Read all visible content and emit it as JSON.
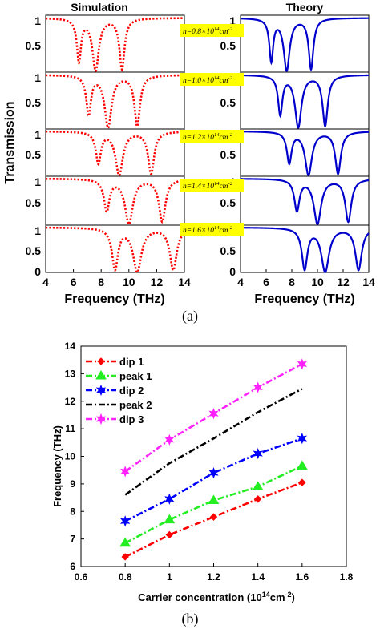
{
  "caption_a": "(a)",
  "caption_b": "(b)",
  "colors": {
    "simulation": "#ff0000",
    "theory": "#0000cc",
    "label_bg": "#ffff00",
    "dip1": "#ff0000",
    "peak1": "#22ee22",
    "dip2": "#0000ff",
    "peak2": "#000000",
    "dip3": "#ff22ff"
  },
  "chart_data": [
    {
      "type": "line",
      "panel": "a",
      "column_titles": [
        "Simulation",
        "Theory"
      ],
      "ylabel": "Transmission",
      "xlabel": "Frequency (THz)",
      "xlim": [
        4,
        14
      ],
      "xticks": [
        "4",
        "6",
        "8",
        "10",
        "12",
        "14"
      ],
      "yticks_top": [
        "0",
        "0.5",
        "1"
      ],
      "yticks_other": [
        "0.5",
        "1"
      ],
      "subplots": [
        {
          "label": "n=0.8×10¹⁴cm⁻²",
          "label_parts": [
            "n=0.8×10",
            "14",
            "cm",
            "-2"
          ],
          "dip_freqs": [
            6.4,
            7.6,
            9.5
          ],
          "dip_widths": [
            0.18,
            0.28,
            0.22
          ],
          "dip_depths": [
            0.82,
            0.98,
            0.95
          ]
        },
        {
          "label": "n=1.0×10¹⁴cm⁻²",
          "label_parts": [
            "n=1.0×10",
            "14",
            "cm",
            "-2"
          ],
          "dip_freqs": [
            7.1,
            8.5,
            10.6
          ],
          "dip_widths": [
            0.2,
            0.3,
            0.24
          ],
          "dip_depths": [
            0.75,
            0.98,
            0.95
          ]
        },
        {
          "label": "n=1.2×10¹⁴cm⁻²",
          "label_parts": [
            "n=1.2×10",
            "14",
            "cm",
            "-2"
          ],
          "dip_freqs": [
            7.8,
            9.3,
            11.6
          ],
          "dip_widths": [
            0.22,
            0.32,
            0.26
          ],
          "dip_depths": [
            0.72,
            0.98,
            0.95
          ]
        },
        {
          "label": "n=1.4×10¹⁴cm⁻²",
          "label_parts": [
            "n=1.4×10",
            "14",
            "cm",
            "-2"
          ],
          "dip_freqs": [
            8.4,
            10.0,
            12.4
          ],
          "dip_widths": [
            0.24,
            0.34,
            0.28
          ],
          "dip_depths": [
            0.7,
            0.98,
            0.93
          ]
        },
        {
          "label": "n=1.6×10¹⁴cm⁻²",
          "label_parts": [
            "n=1.6×10",
            "14",
            "cm",
            "-2"
          ],
          "dip_freqs": [
            9.0,
            10.6,
            13.2
          ],
          "dip_widths": [
            0.26,
            0.36,
            0.3
          ],
          "dip_depths": [
            0.95,
            1.0,
            0.95
          ]
        }
      ]
    },
    {
      "type": "line",
      "panel": "b",
      "xlabel_parts": [
        "Carrier concentration (10",
        "14",
        "cm",
        "-2",
        ")"
      ],
      "ylabel": "Frequency (THz)",
      "xlim": [
        0.6,
        1.8
      ],
      "ylim": [
        6,
        14
      ],
      "xticks": [
        "0.6",
        "0.8",
        "1",
        "1.2",
        "1.4",
        "1.6",
        "1.8"
      ],
      "yticks": [
        "6",
        "7",
        "8",
        "9",
        "10",
        "11",
        "12",
        "13",
        "14"
      ],
      "legend_placement": "top-left",
      "x": [
        0.8,
        1.0,
        1.2,
        1.4,
        1.6
      ],
      "series": [
        {
          "name": "dip 1",
          "marker": "diamond",
          "values": [
            6.35,
            7.15,
            7.8,
            8.45,
            9.05
          ]
        },
        {
          "name": "peak 1",
          "marker": "triangle",
          "values": [
            6.85,
            7.7,
            8.4,
            8.9,
            9.65
          ]
        },
        {
          "name": "dip 2",
          "marker": "star",
          "values": [
            7.65,
            8.45,
            9.4,
            10.1,
            10.65
          ]
        },
        {
          "name": "peak 2",
          "marker": "none",
          "values": [
            8.6,
            9.75,
            10.65,
            11.6,
            12.45
          ]
        },
        {
          "name": "dip 3",
          "marker": "star",
          "values": [
            9.45,
            10.6,
            11.55,
            12.5,
            13.35
          ]
        }
      ]
    }
  ]
}
